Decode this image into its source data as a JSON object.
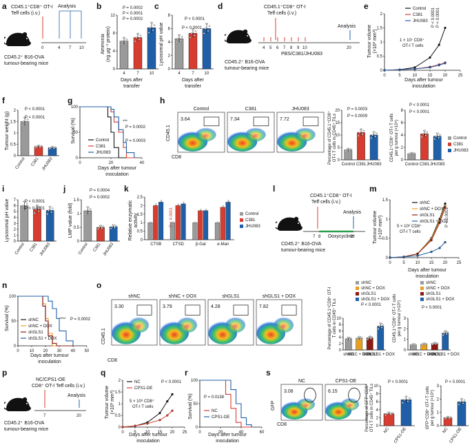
{
  "panels": {
    "a": {
      "label": "a",
      "cells": "CD45.1⁺CD8⁺ OT-I",
      "cells2": "Teff cells (i.v.)",
      "analysis": "Analysis",
      "days": [
        "0",
        "4",
        "7",
        "10"
      ],
      "mouse": "CD45.2⁺ B16-OVA",
      "mouse2": "tumour-bearing mice"
    },
    "b": {
      "label": "b",
      "ylabel": "Ammonia",
      "ylabel2": "(ng µg⁻¹ protein)",
      "xlabel": "Days after",
      "xlabel2": "transfer",
      "p": [
        "P = 0.0002",
        "P < 0.0001",
        "P = 0.0002"
      ]
    },
    "c": {
      "label": "c",
      "ylabel": "Lysosomal pH value",
      "xlabel": "Days after",
      "xlabel2": "transfer",
      "p": [
        "P < 0.0001",
        "P < 0.0001"
      ]
    },
    "d": {
      "label": "d",
      "cells": "CD45.1⁺CD8⁺ OT-I",
      "cells2": "Teff cells (i.v.)",
      "analysis": "Analysis",
      "days": [
        "4",
        "5",
        "6",
        "7",
        "8",
        "9",
        "10",
        "20"
      ],
      "treat": "PBS/C381/JHU083",
      "mouse": "CD45.2⁺ B16-OVA",
      "mouse2": "tumour-bearing mice"
    },
    "e": {
      "label": "e",
      "ylabel": "Tumour volume",
      "ylabel2": "(×10³ mm³)",
      "xlabel": "Days after tumour",
      "xlabel2": "inoculation",
      "note": "1 × 10⁷ CD8⁺",
      "note2": "OT-I T cells",
      "p": [
        "P < 0.0001",
        "P < 0.0001"
      ]
    },
    "f": {
      "label": "f",
      "ylabel": "Tumour weight (g)",
      "p": [
        "P < 0.0001",
        "P < 0.0001"
      ]
    },
    "g": {
      "label": "g",
      "ylabel": "Survival (%)",
      "xlabel": "Days after tumour",
      "xlabel2": "inoculation",
      "p": "P = 0.0002",
      "p2": "P = 0.0003",
      "stars": "***"
    },
    "h": {
      "label": "h",
      "values": [
        "3.64",
        "7.34",
        "7.72"
      ],
      "yaxis": "CD45.1",
      "xaxis": "CD8",
      "ylabel1": "Percentage of CD45.1⁺CD8⁺",
      "ylabel1b": "OT-I T cells in CD45⁺ TILs",
      "ylabel2": "CD45.1⁺CD8⁺ OT-I T cells",
      "ylabel2b": "per g tumour (×10⁵)",
      "p1": [
        "P = 0.0003",
        "P = 0.0009"
      ],
      "p2": [
        "P < 0.0001",
        "P < 0.0001"
      ]
    },
    "i": {
      "label": "i",
      "ylabel": "Lysosomal pH value",
      "p": [
        "P < 0.0001",
        "P < 0.0001"
      ]
    },
    "j": {
      "label": "j",
      "ylabel": "LMP value (fold)",
      "p": [
        "P = 0.0004",
        "P = 0.0002"
      ]
    },
    "k": {
      "label": "k",
      "ylabel": "Relative enzymatic",
      "ylabel2": "activity",
      "pvals": [
        "P < 0.0001"
      ]
    },
    "l": {
      "label": "l",
      "cells": "CD45.1⁺CD8⁺ OT-I",
      "cells2": "Teff cells (i.v.)",
      "analysis": "Analysis",
      "days": [
        "7",
        "8",
        "20"
      ],
      "treat": "Doxycycline",
      "mouse": "CD45.2⁺ B16-OVA",
      "mouse2": "tumour-bearing mice"
    },
    "m": {
      "label": "m",
      "ylabel": "Tumour volume",
      "ylabel2": "(×10³ mm³)",
      "xlabel": "Days after tumour",
      "xlabel2": "inoculation",
      "note": "5 × 10⁶ CD8⁺",
      "note2": "OT-I T cells",
      "p": "P < 0.0001"
    },
    "n": {
      "label": "n",
      "ylabel": "Survival (%)",
      "xlabel": "Days after tumour",
      "xlabel2": "inoculation",
      "p": "P = 0.0002",
      "stars": "****"
    },
    "o": {
      "label": "o",
      "values": [
        "3.30",
        "3.79",
        "4.28",
        "7.82"
      ],
      "yaxis": "CD45.1",
      "xaxis": "CD8",
      "ylabel1": "Percentage of CD45.1⁺CD8⁺ OT-I",
      "ylabel1b": "T cells in CD45⁺ TILs",
      "ylabel2": "CD45.1⁺CD8⁺ OT-I T cells",
      "ylabel2b": "per g tumour (×10⁵)",
      "p1": "P < 0.0001",
      "p2": "P < 0.0001"
    },
    "p": {
      "label": "p",
      "cells": "NC/CPS1-OE",
      "cells2": "CD8⁺ OT-I Teff cells (i.v.)",
      "analysis": "Analysis",
      "days": [
        "7",
        "20"
      ],
      "mouse": "CD45.2⁺ B16-OVA",
      "mouse2": "tumour-bearing mice"
    },
    "q": {
      "label": "q",
      "ylabel": "Tumour volume",
      "ylabel2": "(×10³ mm³)",
      "xlabel": "Days after tumour",
      "xlabel2": "inoculation",
      "note": "5 × 10⁶ CD8⁺",
      "note2": "OT-I T cells",
      "p": "P < 0.0001"
    },
    "r": {
      "label": "r",
      "ylabel": "Survival (%)",
      "xlabel": "Days after tumour",
      "xlabel2": "inoculation",
      "p": "P = 0.0138"
    },
    "s": {
      "label": "s",
      "values": [
        "3.06",
        "6.15"
      ],
      "yaxis": "GFP",
      "xaxis": "CD8",
      "ylabel1": "Percentage of GFP⁺CD8⁺",
      "ylabel1b": "OT-I T cells in CD45⁺ TILs",
      "ylabel2": "GFP⁺CD8⁺ OT-I T cells",
      "ylabel2b": "per g tumour (×10⁵)",
      "p1": "P < 0.0001",
      "p2": "P < 0.0001"
    }
  },
  "legends": {
    "three": [
      "Control",
      "C381",
      "JHU083"
    ],
    "four": [
      "shNC",
      "shNC + DOX",
      "shGLS1",
      "shGLS1 + DOX"
    ],
    "two": [
      "NC",
      "CPS1-OE"
    ]
  },
  "colors": {
    "grey": "#9a9a9a",
    "red": "#d63c2f",
    "blue": "#1f5fa8",
    "black": "#111111",
    "orange": "#e8a020",
    "darkred": "#8b1a12"
  },
  "chart_data": [
    {
      "panel": "b",
      "type": "bar",
      "categories": [
        "4",
        "7",
        "10"
      ],
      "values": [
        6.2,
        7.0,
        9.2
      ],
      "ylim": [
        0,
        12
      ],
      "yticks": [
        0,
        4,
        8,
        12
      ],
      "title": "",
      "xlabel": "Days after transfer",
      "ylabel": "Ammonia (ng µg⁻¹ protein)"
    },
    {
      "panel": "c",
      "type": "bar",
      "categories": [
        "4",
        "7",
        "10"
      ],
      "values": [
        4.5,
        5.3,
        6.0
      ],
      "ylim": [
        0,
        8
      ],
      "yticks": [
        0,
        2,
        4,
        6,
        8
      ],
      "xlabel": "Days after transfer",
      "ylabel": "Lysosomal pH value"
    },
    {
      "panel": "e",
      "type": "line",
      "x": [
        0,
        5,
        10,
        15,
        18,
        20
      ],
      "series": [
        {
          "name": "Control",
          "values": [
            0,
            0.02,
            0.1,
            0.45,
            0.9,
            1.5
          ]
        },
        {
          "name": "C381",
          "values": [
            0,
            0.02,
            0.05,
            0.12,
            0.2,
            0.27
          ]
        },
        {
          "name": "JHU083",
          "values": [
            0,
            0.02,
            0.05,
            0.1,
            0.18,
            0.25
          ]
        }
      ],
      "xlim": [
        0,
        25
      ],
      "ylim": [
        0,
        2
      ],
      "xticks": [
        0,
        5,
        10,
        15,
        20,
        25
      ],
      "yticks": [
        0,
        0.5,
        1.0,
        1.5,
        2.0
      ]
    },
    {
      "panel": "f",
      "type": "bar",
      "categories": [
        "Control",
        "C381",
        "JHU083"
      ],
      "values": [
        1.5,
        0.4,
        0.35
      ],
      "ylim": [
        0,
        2.0
      ],
      "yticks": [
        0,
        0.5,
        1.0,
        1.5,
        2.0
      ]
    },
    {
      "panel": "g",
      "type": "line",
      "x": [
        0,
        15,
        18,
        20,
        22,
        25,
        28,
        30,
        35
      ],
      "series": [
        {
          "name": "Control",
          "values": [
            100,
            100,
            80,
            50,
            20,
            0,
            0,
            0,
            0
          ]
        },
        {
          "name": "C381",
          "values": [
            100,
            100,
            100,
            90,
            70,
            50,
            20,
            0,
            0
          ]
        },
        {
          "name": "JHU083",
          "values": [
            100,
            100,
            100,
            95,
            80,
            55,
            30,
            10,
            0
          ]
        }
      ],
      "xlim": [
        0,
        40
      ],
      "ylim": [
        0,
        100
      ],
      "xticks": [
        0,
        20,
        40
      ],
      "yticks": [
        0,
        50,
        100
      ]
    },
    {
      "panel": "h1",
      "type": "bar",
      "categories": [
        "Control",
        "C381",
        "JHU083"
      ],
      "values": [
        4,
        11,
        10
      ],
      "ylim": [
        0,
        20
      ],
      "yticks": [
        0,
        5,
        10,
        15,
        20
      ]
    },
    {
      "panel": "h2",
      "type": "bar",
      "categories": [
        "Control",
        "C381",
        "JHU083"
      ],
      "values": [
        1,
        4.2,
        3.8
      ],
      "ylim": [
        0,
        8
      ],
      "yticks": [
        0,
        2,
        4,
        6,
        8
      ]
    },
    {
      "panel": "i",
      "type": "bar",
      "categories": [
        "Control",
        "C381",
        "JHU083"
      ],
      "values": [
        6.0,
        5.4,
        5.2
      ],
      "ylim": [
        0,
        7
      ],
      "yticks": [
        0,
        1,
        2,
        3,
        4,
        5,
        6,
        7
      ]
    },
    {
      "panel": "j",
      "type": "bar",
      "categories": [
        "Control",
        "C381",
        "JHU083"
      ],
      "values": [
        1.1,
        0.5,
        0.52
      ],
      "ylim": [
        0,
        1.5
      ],
      "yticks": [
        0,
        0.5,
        1.0,
        1.5
      ]
    },
    {
      "panel": "k",
      "type": "bar",
      "categories": [
        "CTSB",
        "CTSD",
        "β-Gal",
        "α-Man"
      ],
      "series": [
        {
          "name": "Control",
          "values": [
            1,
            1,
            1,
            1
          ]
        },
        {
          "name": "C381",
          "values": [
            2.0,
            2.0,
            1.7,
            1.9
          ]
        },
        {
          "name": "JHU083",
          "values": [
            2.2,
            2.1,
            1.7,
            2.2
          ]
        }
      ],
      "ylim": [
        0,
        2.5
      ],
      "yticks": [
        0,
        0.5,
        1.0,
        1.5,
        2.0,
        2.5
      ]
    },
    {
      "panel": "m",
      "type": "line",
      "x": [
        0,
        5,
        10,
        15,
        18,
        20
      ],
      "series": [
        {
          "name": "shNC",
          "values": [
            0,
            0.02,
            0.1,
            0.5,
            1.0,
            1.4
          ]
        },
        {
          "name": "shNC + DOX",
          "values": [
            0,
            0.02,
            0.1,
            0.48,
            0.95,
            1.35
          ]
        },
        {
          "name": "shGLS1",
          "values": [
            0,
            0.02,
            0.1,
            0.45,
            0.9,
            1.3
          ]
        },
        {
          "name": "shGLS1 + DOX",
          "values": [
            0,
            0.02,
            0.05,
            0.15,
            0.25,
            0.4
          ]
        }
      ],
      "xlim": [
        0,
        25
      ],
      "ylim": [
        0,
        1.5
      ],
      "xticks": [
        0,
        5,
        10,
        15,
        20,
        25
      ],
      "yticks": [
        0,
        0.5,
        1.0,
        1.5
      ]
    },
    {
      "panel": "n",
      "type": "line",
      "x": [
        0,
        15,
        18,
        20,
        22,
        25,
        28,
        30,
        35,
        40
      ],
      "series": [
        {
          "name": "shNC",
          "values": [
            100,
            100,
            80,
            50,
            20,
            0,
            0,
            0,
            0,
            0
          ]
        },
        {
          "name": "shNC + DOX",
          "values": [
            100,
            100,
            85,
            55,
            25,
            0,
            0,
            0,
            0,
            0
          ]
        },
        {
          "name": "shGLS1",
          "values": [
            100,
            100,
            80,
            50,
            20,
            5,
            0,
            0,
            0,
            0
          ]
        },
        {
          "name": "shGLS1 + DOX",
          "values": [
            100,
            100,
            100,
            100,
            90,
            75,
            55,
            30,
            10,
            0
          ]
        }
      ],
      "xlim": [
        0,
        50
      ],
      "ylim": [
        0,
        100
      ],
      "xticks": [
        0,
        10,
        20,
        30,
        40,
        50
      ],
      "yticks": [
        0,
        50,
        100
      ]
    },
    {
      "panel": "o1",
      "type": "bar",
      "categories": [
        "shNC",
        "shNC + DOX",
        "shGLS1",
        "shGLS1 + DOX"
      ],
      "values": [
        3.5,
        3.7,
        3.8,
        7.5
      ],
      "ylim": [
        0,
        10
      ],
      "yticks": [
        0,
        2,
        4,
        6,
        8,
        10
      ]
    },
    {
      "panel": "o2",
      "type": "bar",
      "categories": [
        "shNC",
        "shNC + DOX",
        "shGLS1",
        "shGLS1 + DOX"
      ],
      "values": [
        0.5,
        0.55,
        0.6,
        1.6
      ],
      "ylim": [
        0,
        3
      ],
      "yticks": [
        0,
        1,
        2,
        3
      ]
    },
    {
      "panel": "q",
      "type": "line",
      "x": [
        0,
        5,
        10,
        15,
        18,
        20
      ],
      "series": [
        {
          "name": "NC",
          "values": [
            0,
            0.05,
            0.2,
            0.6,
            1.1,
            1.4
          ]
        },
        {
          "name": "CPS1-OE",
          "values": [
            0,
            0.05,
            0.15,
            0.3,
            0.5,
            0.7
          ]
        }
      ],
      "xlim": [
        0,
        25
      ],
      "ylim": [
        0,
        2.0
      ],
      "xticks": [
        0,
        5,
        10,
        15,
        20,
        25
      ],
      "yticks": [
        0,
        0.5,
        1.0,
        1.5,
        2.0
      ]
    },
    {
      "panel": "r",
      "type": "line",
      "x": [
        0,
        20,
        25,
        30,
        35,
        40,
        45,
        50
      ],
      "series": [
        {
          "name": "NC",
          "values": [
            100,
            100,
            70,
            40,
            10,
            0,
            0,
            0
          ]
        },
        {
          "name": "CPS1-OE",
          "values": [
            100,
            100,
            100,
            80,
            50,
            20,
            5,
            0
          ]
        }
      ],
      "xlim": [
        0,
        60
      ],
      "ylim": [
        0,
        100
      ],
      "xticks": [
        0,
        20,
        40,
        60
      ],
      "yticks": [
        0,
        50,
        100
      ]
    },
    {
      "panel": "s1",
      "type": "bar",
      "categories": [
        "NC",
        "CPS1-OE"
      ],
      "values": [
        3.0,
        6.5
      ],
      "ylim": [
        0,
        10
      ],
      "yticks": [
        0,
        2,
        4,
        6,
        8,
        10
      ]
    },
    {
      "panel": "s2",
      "type": "bar",
      "categories": [
        "NC",
        "CPS1-OE"
      ],
      "values": [
        0.6,
        1.8
      ],
      "ylim": [
        0,
        3
      ],
      "yticks": [
        0,
        1,
        2,
        3
      ]
    }
  ]
}
